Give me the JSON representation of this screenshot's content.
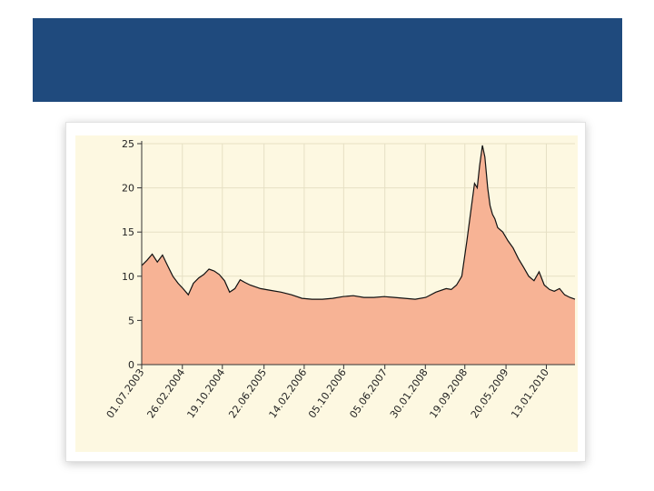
{
  "colors": {
    "banner": "#1f4a7d",
    "plot_bg": "#fdf8e1",
    "area_fill": "#f7b395",
    "line": "#111111",
    "grid": "#e6e0c4"
  },
  "chart_data": {
    "type": "area",
    "title": "",
    "xlabel": "",
    "ylabel": "",
    "ylim": [
      0,
      25
    ],
    "yticks": [
      0,
      5,
      10,
      15,
      20,
      25
    ],
    "grid": true,
    "legend": "none",
    "x_tick_labels": [
      "01.07.2003",
      "26.02.2004",
      "19.10.2004",
      "22.06.2005",
      "14.02.2006",
      "05.10.2006",
      "05.06.2007",
      "30.01.2008",
      "19.09.2008",
      "20.05.2009",
      "13.01.2010"
    ],
    "x": [
      "01.07.2003",
      "01.08.2003",
      "01.09.2003",
      "01.10.2003",
      "01.11.2003",
      "01.12.2003",
      "01.01.2004",
      "01.02.2004",
      "01.03.2004",
      "01.04.2004",
      "01.05.2004",
      "01.06.2004",
      "01.07.2004",
      "01.08.2004",
      "01.09.2004",
      "01.10.2004",
      "01.11.2004",
      "01.12.2004",
      "01.01.2005",
      "01.02.2005",
      "01.03.2005",
      "01.04.2005",
      "01.06.2005",
      "01.08.2005",
      "01.10.2005",
      "01.12.2005",
      "01.02.2006",
      "01.04.2006",
      "01.06.2006",
      "01.08.2006",
      "01.10.2006",
      "01.12.2006",
      "01.02.2007",
      "01.04.2007",
      "01.06.2007",
      "01.08.2007",
      "01.10.2007",
      "01.12.2007",
      "01.02.2008",
      "01.04.2008",
      "01.06.2008",
      "01.07.2008",
      "01.08.2008",
      "01.09.2008",
      "01.10.2008",
      "01.11.2008",
      "15.11.2008",
      "01.12.2008",
      "15.12.2008",
      "01.01.2009",
      "15.01.2009",
      "01.02.2009",
      "15.02.2009",
      "01.03.2009",
      "15.03.2009",
      "01.04.2009",
      "01.05.2009",
      "01.06.2009",
      "01.07.2009",
      "01.08.2009",
      "01.09.2009",
      "01.10.2009",
      "01.11.2009",
      "01.12.2009",
      "01.01.2010",
      "01.02.2010",
      "01.03.2010",
      "01.04.2010",
      "01.05.2010",
      "01.06.2010",
      "01.07.2010"
    ],
    "values": [
      11.2,
      11.8,
      12.5,
      11.6,
      12.4,
      11.2,
      10.0,
      9.2,
      8.6,
      7.9,
      9.2,
      9.8,
      10.2,
      10.8,
      10.6,
      10.2,
      9.5,
      8.2,
      8.6,
      9.6,
      9.3,
      9.0,
      8.6,
      8.4,
      8.2,
      7.9,
      7.5,
      7.4,
      7.4,
      7.5,
      7.7,
      7.8,
      7.6,
      7.6,
      7.7,
      7.6,
      7.5,
      7.4,
      7.6,
      8.2,
      8.6,
      8.5,
      9.0,
      10.0,
      14.0,
      18.5,
      20.5,
      20.0,
      22.5,
      24.8,
      23.5,
      20.0,
      18.0,
      17.0,
      16.5,
      15.5,
      15.0,
      14.0,
      13.2,
      12.0,
      11.0,
      10.0,
      9.5,
      10.5,
      9.0,
      8.5,
      8.3,
      8.6,
      7.9,
      7.6,
      7.4
    ]
  }
}
